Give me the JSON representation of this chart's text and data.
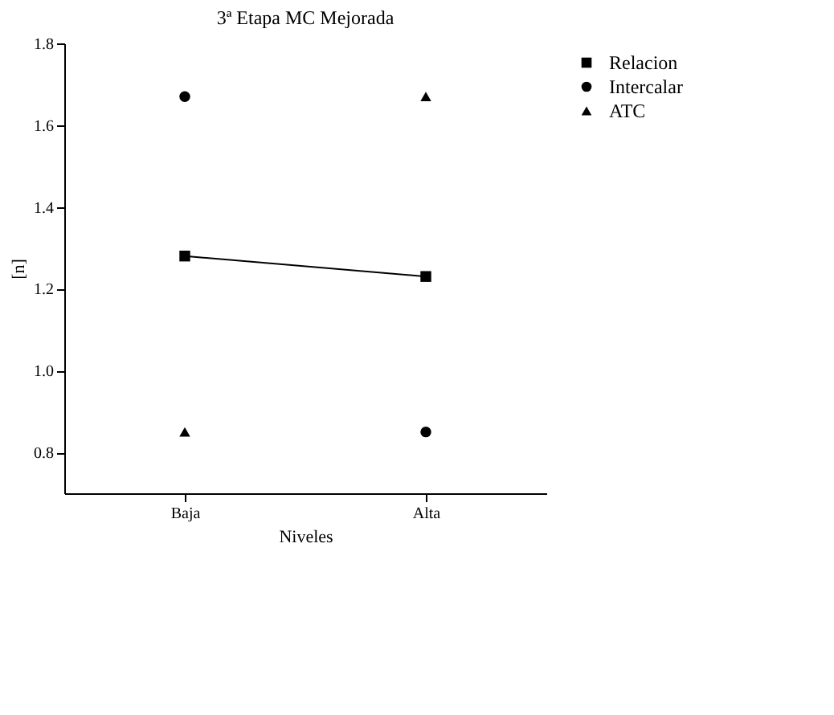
{
  "chart_data": {
    "type": "scatter",
    "title": "3ª Etapa MC Mejorada",
    "xlabel": "Niveles",
    "ylabel": "[n]",
    "categories": [
      "Baja",
      "Alta"
    ],
    "ylim": [
      0.7,
      1.8
    ],
    "yticks": [
      0.8,
      {
        "value": 1.0,
        "label": "1.0"
      },
      1.2,
      1.4,
      1.6,
      1.8
    ],
    "grid": false,
    "legend": "right",
    "series": [
      {
        "name": "Relacion",
        "color": "#000000",
        "type": "line",
        "marker": "square",
        "values": [
          1.28,
          1.23
        ]
      },
      {
        "name": "Intercalar",
        "color": "#000000",
        "marker": "circle",
        "values": [
          1.67,
          0.85
        ]
      },
      {
        "name": "ATC",
        "color": "#000000",
        "marker": "triangle",
        "values": [
          0.85,
          1.67
        ]
      }
    ]
  }
}
